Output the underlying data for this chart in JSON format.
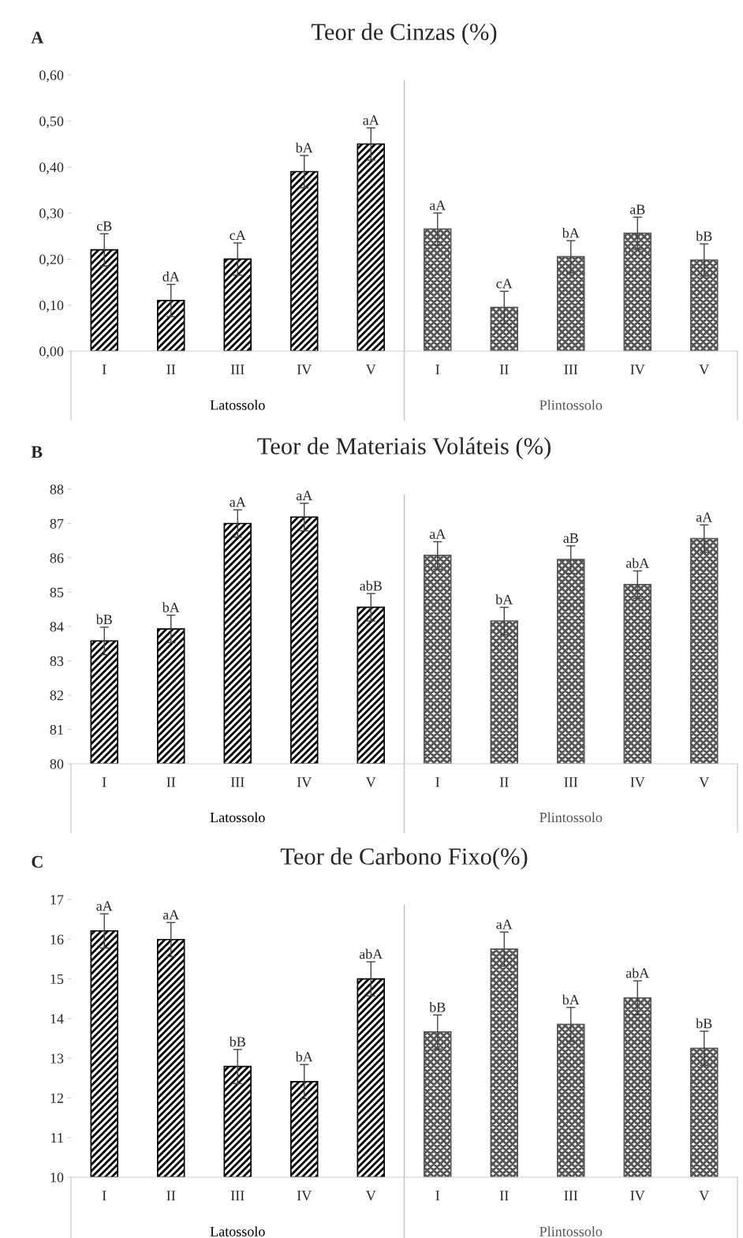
{
  "chart_data": [
    {
      "type": "bar",
      "title": "Teor de Cinzas (%)",
      "annotations": [
        "A"
      ],
      "categories": [
        "I",
        "II",
        "III",
        "IV",
        "V",
        "I",
        "II",
        "III",
        "IV",
        "V"
      ],
      "series": [
        {
          "name": "Latossolo",
          "color": "#000000",
          "values": [
            0.22,
            0.11,
            0.2,
            0.39,
            0.45,
            null,
            null,
            null,
            null,
            null
          ],
          "errors": [
            0.035,
            0.035,
            0.035,
            0.035,
            0.035,
            null,
            null,
            null,
            null,
            null
          ],
          "value_labels": [
            "cB",
            "dA",
            "cA",
            "bA",
            "aA",
            null,
            null,
            null,
            null,
            null
          ]
        },
        {
          "name": "Plintossolo",
          "color": "#555555",
          "values": [
            null,
            null,
            null,
            null,
            null,
            0.265,
            0.095,
            0.205,
            0.256,
            0.198
          ],
          "errors": [
            null,
            null,
            null,
            null,
            null,
            0.035,
            0.035,
            0.035,
            0.035,
            0.035
          ],
          "value_labels": [
            null,
            null,
            null,
            null,
            null,
            "aA",
            "cA",
            "bA",
            "aB",
            "bB"
          ]
        }
      ],
      "ylim": [
        0,
        0.6
      ],
      "yticks": [
        {
          "value": 0,
          "label": "0,00"
        },
        {
          "value": 0.1,
          "label": "0,10"
        },
        {
          "value": 0.2,
          "label": "0,20"
        },
        {
          "value": 0.3,
          "label": "0,30"
        },
        {
          "value": 0.4,
          "label": "0,40"
        },
        {
          "value": 0.5,
          "label": "0,50"
        },
        {
          "value": 0.6,
          "label": "0,60"
        }
      ],
      "grid": false,
      "legend": false
    },
    {
      "type": "bar",
      "title": "Teor de Materiais Voláteis (%)",
      "annotations": [
        "B"
      ],
      "categories": [
        "I",
        "II",
        "III",
        "IV",
        "V",
        "I",
        "II",
        "III",
        "IV",
        "V"
      ],
      "series": [
        {
          "name": "Latossolo",
          "color": "#000000",
          "values": [
            83.58,
            83.93,
            87.0,
            87.19,
            84.56,
            null,
            null,
            null,
            null,
            null
          ],
          "errors": [
            0.4,
            0.4,
            0.4,
            0.4,
            0.4,
            null,
            null,
            null,
            null,
            null
          ],
          "value_labels": [
            "bB",
            "bA",
            "aA",
            "aA",
            "abB",
            null,
            null,
            null,
            null,
            null
          ]
        },
        {
          "name": "Plintossolo",
          "color": "#555555",
          "values": [
            null,
            null,
            null,
            null,
            null,
            86.07,
            84.16,
            85.95,
            85.22,
            86.56
          ],
          "errors": [
            null,
            null,
            null,
            null,
            null,
            0.4,
            0.4,
            0.4,
            0.4,
            0.4
          ],
          "value_labels": [
            null,
            null,
            null,
            null,
            null,
            "aA",
            "bA",
            "aB",
            "abA",
            "aA"
          ]
        }
      ],
      "ylim": [
        80,
        88
      ],
      "yticks": [
        80,
        81,
        82,
        83,
        84,
        85,
        86,
        87,
        88
      ],
      "grid": false,
      "legend": false
    },
    {
      "type": "bar",
      "title": "Teor de Carbono Fixo(%)",
      "annotations": [
        "C"
      ],
      "categories": [
        "I",
        "II",
        "III",
        "IV",
        "V",
        "I",
        "II",
        "III",
        "IV",
        "V"
      ],
      "series": [
        {
          "name": "Latossolo",
          "color": "#000000",
          "values": [
            16.21,
            15.99,
            12.79,
            12.41,
            15.0,
            null,
            null,
            null,
            null,
            null
          ],
          "errors": [
            0.43,
            0.43,
            0.43,
            0.43,
            0.43,
            null,
            null,
            null,
            null,
            null
          ],
          "value_labels": [
            "aA",
            "aA",
            "bB",
            "bA",
            "abA",
            null,
            null,
            null,
            null,
            null
          ]
        },
        {
          "name": "Plintossolo",
          "color": "#555555",
          "values": [
            null,
            null,
            null,
            null,
            null,
            13.66,
            15.75,
            13.85,
            14.52,
            13.25
          ],
          "errors": [
            null,
            null,
            null,
            null,
            null,
            0.43,
            0.43,
            0.43,
            0.43,
            0.43
          ],
          "value_labels": [
            null,
            null,
            null,
            null,
            null,
            "bB",
            "aA",
            "bA",
            "abA",
            "bB"
          ]
        }
      ],
      "ylim": [
        10,
        17
      ],
      "yticks": [
        10,
        11,
        12,
        13,
        14,
        15,
        16,
        17
      ],
      "grid": false,
      "legend": false
    }
  ]
}
